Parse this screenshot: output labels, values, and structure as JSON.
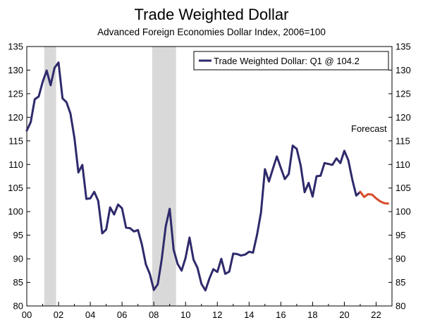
{
  "chart_data": {
    "type": "line",
    "title": "Trade Weighted Dollar",
    "subtitle": "Advanced Foreign Economies Dollar Index, 2006=100",
    "xlabel": "",
    "ylabel": "",
    "xlim": [
      2000,
      2023
    ],
    "ylim": [
      80,
      135
    ],
    "x_ticks": [
      2000,
      2002,
      2004,
      2006,
      2008,
      2010,
      2012,
      2014,
      2016,
      2018,
      2020,
      2022
    ],
    "x_tick_labels": [
      "00",
      "02",
      "04",
      "06",
      "08",
      "10",
      "12",
      "14",
      "16",
      "18",
      "20",
      "22"
    ],
    "y_ticks": [
      80,
      85,
      90,
      95,
      100,
      105,
      110,
      115,
      120,
      125,
      130,
      135
    ],
    "legend": {
      "position": "top-right",
      "label": "Trade Weighted Dollar: Q1 @ 104.2"
    },
    "annotations": [
      {
        "text": "Forecast",
        "x": 2021.6,
        "y": 117
      }
    ],
    "recessions": [
      [
        2001.1,
        2001.85
      ],
      [
        2007.9,
        2009.4
      ]
    ],
    "colors": {
      "actual": "#2e2a6b",
      "forecast": "#d94b2b",
      "recession": "#d9d9d9"
    },
    "series": [
      {
        "name": "Trade Weighted Dollar",
        "x": [
          2000.0,
          2000.25,
          2000.5,
          2000.75,
          2001.0,
          2001.25,
          2001.5,
          2001.75,
          2002.0,
          2002.25,
          2002.5,
          2002.75,
          2003.0,
          2003.25,
          2003.5,
          2003.75,
          2004.0,
          2004.25,
          2004.5,
          2004.75,
          2005.0,
          2005.25,
          2005.5,
          2005.75,
          2006.0,
          2006.25,
          2006.5,
          2006.75,
          2007.0,
          2007.25,
          2007.5,
          2007.75,
          2008.0,
          2008.25,
          2008.5,
          2008.75,
          2009.0,
          2009.25,
          2009.5,
          2009.75,
          2010.0,
          2010.25,
          2010.5,
          2010.75,
          2011.0,
          2011.25,
          2011.5,
          2011.75,
          2012.0,
          2012.25,
          2012.5,
          2012.75,
          2013.0,
          2013.25,
          2013.5,
          2013.75,
          2014.0,
          2014.25,
          2014.5,
          2014.75,
          2015.0,
          2015.25,
          2015.5,
          2015.75,
          2016.0,
          2016.25,
          2016.5,
          2016.75,
          2017.0,
          2017.25,
          2017.5,
          2017.75,
          2018.0,
          2018.25,
          2018.5,
          2018.75,
          2019.0,
          2019.25,
          2019.5,
          2019.75,
          2020.0,
          2020.25,
          2020.5,
          2020.75,
          2021.0
        ],
        "values": [
          117.2,
          119.0,
          123.8,
          124.4,
          127.5,
          129.9,
          126.8,
          130.5,
          131.6,
          124.0,
          123.2,
          120.8,
          115.6,
          108.3,
          109.9,
          102.7,
          102.8,
          104.2,
          102.3,
          95.4,
          96.2,
          100.9,
          99.4,
          101.5,
          100.7,
          96.6,
          96.5,
          95.8,
          96.1,
          93.0,
          88.8,
          86.8,
          83.4,
          84.6,
          89.9,
          96.9,
          100.6,
          91.9,
          88.9,
          87.5,
          90.2,
          94.5,
          89.8,
          88.1,
          84.7,
          83.3,
          85.8,
          87.8,
          87.2,
          90.0,
          86.8,
          87.3,
          91.1,
          91.0,
          90.7,
          90.9,
          91.5,
          91.3,
          95.1,
          99.8,
          109.0,
          106.4,
          109.1,
          111.7,
          109.3,
          106.9,
          108.0,
          114.0,
          113.3,
          109.8,
          104.1,
          106.1,
          103.2,
          107.5,
          107.6,
          110.3,
          110.1,
          109.9,
          111.3,
          110.3,
          112.9,
          110.9,
          106.8,
          103.4,
          104.2
        ]
      },
      {
        "name": "Forecast",
        "x": [
          2021.0,
          2021.25,
          2021.5,
          2021.75,
          2022.0,
          2022.25,
          2022.5,
          2022.75
        ],
        "values": [
          104.2,
          103.1,
          103.7,
          103.6,
          102.8,
          102.2,
          101.8,
          101.7
        ]
      }
    ]
  }
}
